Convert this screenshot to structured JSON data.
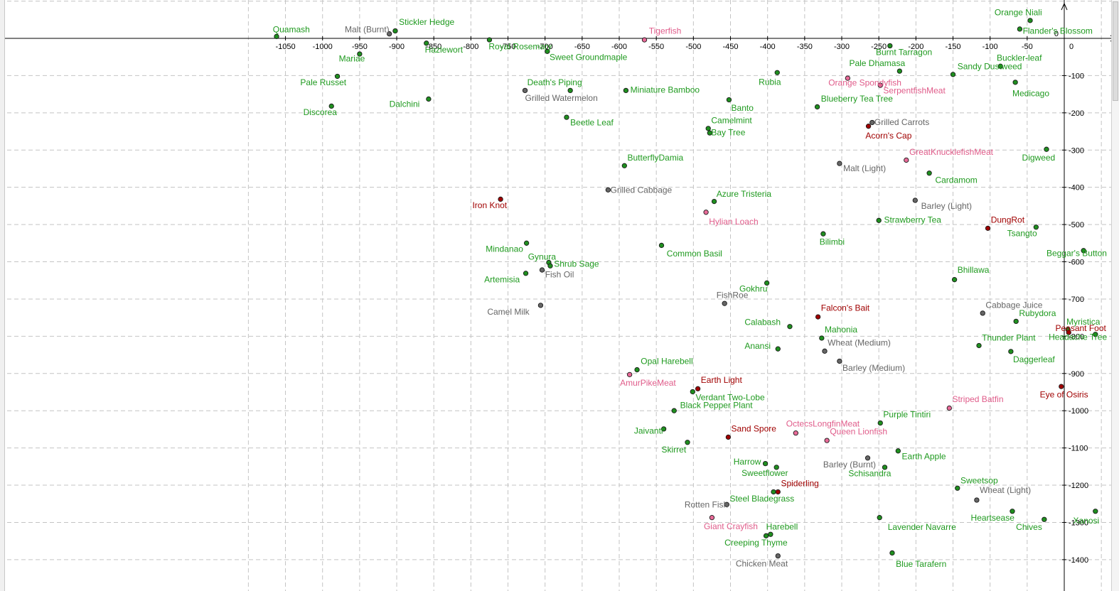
{
  "chart_data": {
    "type": "scatter",
    "title": "",
    "xlabel": "",
    "ylabel": "",
    "xlim": [
      -1085,
      75
    ],
    "ylim": [
      -1460,
      75
    ],
    "grid": true,
    "x_ticks": [
      -1050,
      -1000,
      -950,
      -900,
      -850,
      -800,
      -750,
      -700,
      -650,
      -600,
      -550,
      -500,
      -450,
      -400,
      -350,
      -300,
      -250,
      -200,
      -150,
      -100,
      -50,
      0
    ],
    "y_ticks": [
      -100,
      -200,
      -300,
      -400,
      -500,
      -600,
      -700,
      -800,
      -900,
      -1000,
      -1100,
      -1200,
      -1300,
      -1400
    ],
    "zero_label": "0",
    "colors": {
      "green": "#1f9a1f",
      "gray": "#666666",
      "red": "#a00000",
      "pink": "#e05c8a",
      "grid": "#c4c4c4",
      "axis": "#000000"
    },
    "points": [
      {
        "label": "Quamash",
        "x": -1062,
        "y": 5,
        "color": "green",
        "lx": -1067,
        "ly": 16
      },
      {
        "label": "Malt (Burnt)",
        "x": -910,
        "y": 12,
        "color": "gray",
        "lx": -970,
        "ly": 16
      },
      {
        "label": "Stickler Hedge",
        "x": -902,
        "y": 20,
        "color": "green",
        "lx": -897,
        "ly": 36
      },
      {
        "label": "Hazlewort",
        "x": -860,
        "y": -13,
        "color": "green",
        "lx": -862,
        "ly": -38
      },
      {
        "label": "Royal Rosemary",
        "x": -775,
        "y": -4,
        "color": "green",
        "lx": -776,
        "ly": -30
      },
      {
        "label": "Tigerfish",
        "x": -566,
        "y": -4,
        "color": "pink",
        "lx": -560,
        "ly": 12
      },
      {
        "label": "Sweet Groundmaple",
        "x": -697,
        "y": -35,
        "color": "green",
        "lx": -694,
        "ly": -58
      },
      {
        "label": "Mariae",
        "x": -950,
        "y": -42,
        "color": "green",
        "lx": -978,
        "ly": -62
      },
      {
        "label": "Pale Russet",
        "x": -980,
        "y": -102,
        "color": "green",
        "lx": -1030,
        "ly": -126
      },
      {
        "label": "Discorea",
        "x": -988,
        "y": -182,
        "color": "green",
        "lx": -1026,
        "ly": -206
      },
      {
        "label": "Dalchini",
        "x": -857,
        "y": -163,
        "color": "green",
        "lx": -910,
        "ly": -184
      },
      {
        "label": "Death's Piping",
        "x": -666,
        "y": -140,
        "color": "green",
        "lx": -724,
        "ly": -126
      },
      {
        "label": "Grilled Watermelon",
        "x": -727,
        "y": -140,
        "color": "gray",
        "lx": -727,
        "ly": -168
      },
      {
        "label": "Beetle Leaf",
        "x": -671,
        "y": -212,
        "color": "green",
        "lx": -666,
        "ly": -234
      },
      {
        "label": "Miniature Bamboo",
        "x": -591,
        "y": -140,
        "color": "green",
        "lx": -585,
        "ly": -146
      },
      {
        "label": "Banto",
        "x": -452,
        "y": -165,
        "color": "green",
        "lx": -449,
        "ly": -195
      },
      {
        "label": "Rubia",
        "x": -387,
        "y": -92,
        "color": "green",
        "lx": -412,
        "ly": -125
      },
      {
        "label": "Camelmint",
        "x": -480,
        "y": -242,
        "color": "green",
        "lx": -476,
        "ly": -228
      },
      {
        "label": "Bay Tree",
        "x": -478,
        "y": -254,
        "color": "green",
        "lx": -476,
        "ly": -260
      },
      {
        "label": "ButterflyDamia",
        "x": -593,
        "y": -342,
        "color": "green",
        "lx": -589,
        "ly": -328
      },
      {
        "label": "Grilled Cabbage",
        "x": -615,
        "y": -407,
        "color": "gray",
        "lx": -612,
        "ly": -415
      },
      {
        "label": "Iron Knot",
        "x": -760,
        "y": -432,
        "color": "red",
        "lx": -798,
        "ly": -456
      },
      {
        "label": "Azure Tristeria",
        "x": -472,
        "y": -438,
        "color": "green",
        "lx": -469,
        "ly": -425
      },
      {
        "label": "Hylian Loach",
        "x": -483,
        "y": -467,
        "color": "pink",
        "lx": -479,
        "ly": -500
      },
      {
        "label": "Mindanao",
        "x": -725,
        "y": -550,
        "color": "green",
        "lx": -780,
        "ly": -573
      },
      {
        "label": "Common Basil",
        "x": -543,
        "y": -556,
        "color": "green",
        "lx": -536,
        "ly": -586
      },
      {
        "label": "Gynura",
        "x": -695,
        "y": -602,
        "color": "green",
        "lx": -723,
        "ly": -594
      },
      {
        "label": "Shrub Sage",
        "x": -693,
        "y": -611,
        "color": "green",
        "lx": -688,
        "ly": -613
      },
      {
        "label": "Fish Oil",
        "x": -704,
        "y": -622,
        "color": "gray",
        "lx": -700,
        "ly": -642
      },
      {
        "label": "Artemisia",
        "x": -726,
        "y": -631,
        "color": "green",
        "lx": -782,
        "ly": -655
      },
      {
        "label": "Camel Milk",
        "x": -706,
        "y": -717,
        "color": "gray",
        "lx": -778,
        "ly": -742
      },
      {
        "label": "FishRoe",
        "x": -458,
        "y": -712,
        "color": "gray",
        "lx": -469,
        "ly": -697
      },
      {
        "label": "Gokhru",
        "x": -401,
        "y": -657,
        "color": "green",
        "lx": -438,
        "ly": -680
      },
      {
        "label": "Calabash",
        "x": -370,
        "y": -774,
        "color": "green",
        "lx": -431,
        "ly": -770
      },
      {
        "label": "Anansi",
        "x": -386,
        "y": -834,
        "color": "green",
        "lx": -431,
        "ly": -834
      },
      {
        "label": "Falcon's Bait",
        "x": -332,
        "y": -748,
        "color": "red",
        "lx": -328,
        "ly": -732
      },
      {
        "label": "Mahonia",
        "x": -327,
        "y": -805,
        "color": "green",
        "lx": -323,
        "ly": -790
      },
      {
        "label": "Wheat (Medium)",
        "x": -323,
        "y": -840,
        "color": "gray",
        "lx": -319,
        "ly": -825
      },
      {
        "label": "Barley (Medium)",
        "x": -303,
        "y": -867,
        "color": "gray",
        "lx": -299,
        "ly": -893
      },
      {
        "label": "Opal Harebell",
        "x": -576,
        "y": -890,
        "color": "green",
        "lx": -571,
        "ly": -875
      },
      {
        "label": "AmurPikeMeat",
        "x": -586,
        "y": -903,
        "color": "pink",
        "lx": -599,
        "ly": -933
      },
      {
        "label": "Earth Light",
        "x": -494,
        "y": -941,
        "color": "red",
        "lx": -490,
        "ly": -925
      },
      {
        "label": "Verdant Two-Lobe",
        "x": -501,
        "y": -949,
        "color": "green",
        "lx": -497,
        "ly": -972
      },
      {
        "label": "Black Pepper Plant",
        "x": -526,
        "y": -1000,
        "color": "green",
        "lx": -518,
        "ly": -993
      },
      {
        "label": "Jaivanti",
        "x": -540,
        "y": -1049,
        "color": "green",
        "lx": -580,
        "ly": -1062
      },
      {
        "label": "Skirret",
        "x": -508,
        "y": -1085,
        "color": "green",
        "lx": -543,
        "ly": -1112
      },
      {
        "label": "Sand Spore",
        "x": -453,
        "y": -1071,
        "color": "red",
        "lx": -449,
        "ly": -1056
      },
      {
        "label": "OctecsLongfinMeat",
        "x": -362,
        "y": -1060,
        "color": "pink",
        "lx": -375,
        "ly": -1043
      },
      {
        "label": "Queen Lionfish",
        "x": -320,
        "y": -1080,
        "color": "pink",
        "lx": -316,
        "ly": -1064
      },
      {
        "label": "Purple Tintiri",
        "x": -248,
        "y": -1033,
        "color": "green",
        "lx": -244,
        "ly": -1018
      },
      {
        "label": "Striped Batfin",
        "x": -155,
        "y": -993,
        "color": "pink",
        "lx": -151,
        "ly": -977
      },
      {
        "label": "Eye of Osiris",
        "x": -4,
        "y": -935,
        "color": "red",
        "lx": -33,
        "ly": -964
      },
      {
        "label": "Earth Apple",
        "x": -224,
        "y": -1108,
        "color": "green",
        "lx": -219,
        "ly": -1130
      },
      {
        "label": "Barley (Burnt)",
        "x": -265,
        "y": -1127,
        "color": "gray",
        "lx": -325,
        "ly": -1152
      },
      {
        "label": "Schisandra",
        "x": -242,
        "y": -1152,
        "color": "green",
        "lx": -291,
        "ly": -1176
      },
      {
        "label": "Harrow",
        "x": -403,
        "y": -1142,
        "color": "green",
        "lx": -446,
        "ly": -1145
      },
      {
        "label": "Sweetflower",
        "x": -388,
        "y": -1152,
        "color": "green",
        "lx": -435,
        "ly": -1175
      },
      {
        "label": "Spiderling",
        "x": -386,
        "y": -1218,
        "color": "red",
        "lx": -382,
        "ly": -1203
      },
      {
        "label": "Steel Bladegrass",
        "x": -392,
        "y": -1218,
        "color": "green",
        "lx": -451,
        "ly": -1244
      },
      {
        "label": "Rotten Fish",
        "x": -455,
        "y": -1252,
        "color": "gray",
        "lx": -512,
        "ly": -1260
      },
      {
        "label": "Giant Crayfish",
        "x": -475,
        "y": -1287,
        "color": "pink",
        "lx": -486,
        "ly": -1318
      },
      {
        "label": "Harebell",
        "x": -396,
        "y": -1332,
        "color": "green",
        "lx": -402,
        "ly": -1319
      },
      {
        "label": "Creeping Thyme",
        "x": -402,
        "y": -1336,
        "color": "green",
        "lx": -458,
        "ly": -1362
      },
      {
        "label": "Chicken Meat",
        "x": -386,
        "y": -1390,
        "color": "gray",
        "lx": -443,
        "ly": -1418
      },
      {
        "label": "Lavender Navarre",
        "x": -249,
        "y": -1287,
        "color": "green",
        "lx": -238,
        "ly": -1320
      },
      {
        "label": "Blue Tarafern",
        "x": -232,
        "y": -1382,
        "color": "green",
        "lx": -227,
        "ly": -1419
      },
      {
        "label": "Sweetsop",
        "x": -144,
        "y": -1208,
        "color": "green",
        "lx": -140,
        "ly": -1195
      },
      {
        "label": "Wheat (Light)",
        "x": -118,
        "y": -1240,
        "color": "gray",
        "lx": -114,
        "ly": -1221
      },
      {
        "label": "Heartsease",
        "x": -70,
        "y": -1270,
        "color": "green",
        "lx": -126,
        "ly": -1295
      },
      {
        "label": "Chives",
        "x": -27,
        "y": -1292,
        "color": "green",
        "lx": -65,
        "ly": -1320
      },
      {
        "label": "Xanosi",
        "x": 42,
        "y": -1270,
        "color": "green",
        "lx": 12,
        "ly": -1303
      },
      {
        "label": "Thunder Plant",
        "x": -115,
        "y": -825,
        "color": "green",
        "lx": -111,
        "ly": -812
      },
      {
        "label": "Daggerleaf",
        "x": -72,
        "y": -841,
        "color": "green",
        "lx": -69,
        "ly": -870
      },
      {
        "label": "Cabbage Juice",
        "x": -110,
        "y": -738,
        "color": "gray",
        "lx": -106,
        "ly": -724
      },
      {
        "label": "Rubydora",
        "x": -65,
        "y": -760,
        "color": "green",
        "lx": -61,
        "ly": -746
      },
      {
        "label": "Myristica",
        "x": 5,
        "y": -782,
        "color": "green",
        "lx": 3,
        "ly": -769
      },
      {
        "label": "Peasant Foot",
        "x": 6,
        "y": -790,
        "color": "red",
        "lx": -12,
        "ly": -786
      },
      {
        "label": "Headache Tree",
        "x": 42,
        "y": -795,
        "color": "green",
        "lx": -21,
        "ly": -810
      },
      {
        "label": "Bhillawa",
        "x": -148,
        "y": -648,
        "color": "green",
        "lx": -144,
        "ly": -630
      },
      {
        "label": "Beggar's Button",
        "x": 26,
        "y": -570,
        "color": "green",
        "lx": -24,
        "ly": -585
      },
      {
        "label": "Tsangto",
        "x": -38,
        "y": -507,
        "color": "green",
        "lx": -77,
        "ly": -531
      },
      {
        "label": "DungRot",
        "x": -103,
        "y": -510,
        "color": "red",
        "lx": -99,
        "ly": -495
      },
      {
        "label": "Barley (Light)",
        "x": -201,
        "y": -435,
        "color": "gray",
        "lx": -193,
        "ly": -458
      },
      {
        "label": "Strawberry Tea",
        "x": -250,
        "y": -489,
        "color": "green",
        "lx": -243,
        "ly": -495
      },
      {
        "label": "Bilimbi",
        "x": -325,
        "y": -525,
        "color": "green",
        "lx": -330,
        "ly": -554
      },
      {
        "label": "Cardamom",
        "x": -182,
        "y": -362,
        "color": "green",
        "lx": -174,
        "ly": -388
      },
      {
        "label": "Malt (Light)",
        "x": -303,
        "y": -336,
        "color": "gray",
        "lx": -298,
        "ly": -357
      },
      {
        "label": "GreatKnucklefishMeat",
        "x": -213,
        "y": -327,
        "color": "pink",
        "lx": -209,
        "ly": -313
      },
      {
        "label": "Digweed",
        "x": -24,
        "y": -298,
        "color": "green",
        "lx": -57,
        "ly": -328
      },
      {
        "label": "Grilled Carrots",
        "x": -259,
        "y": -226,
        "color": "gray",
        "lx": -256,
        "ly": -233
      },
      {
        "label": "Acorn's Cap",
        "x": -264,
        "y": -236,
        "color": "red",
        "lx": -268,
        "ly": -269
      },
      {
        "label": "Blueberry Tea Tree",
        "x": -333,
        "y": -184,
        "color": "green",
        "lx": -328,
        "ly": -170
      },
      {
        "label": "Orange Spondyfish",
        "x": -292,
        "y": -107,
        "color": "pink",
        "lx": -318,
        "ly": -127
      },
      {
        "label": "SerpentfishMeat",
        "x": -248,
        "y": -126,
        "color": "pink",
        "lx": -244,
        "ly": -148
      },
      {
        "label": "Pale Dhamasa",
        "x": -222,
        "y": -88,
        "color": "green",
        "lx": -290,
        "ly": -74
      },
      {
        "label": "Burnt Tarragon",
        "x": -235,
        "y": -20,
        "color": "green",
        "lx": -254,
        "ly": -45
      },
      {
        "label": "Sandy Dustweed",
        "x": -150,
        "y": -97,
        "color": "green",
        "lx": -144,
        "ly": -83
      },
      {
        "label": "Buckler-leaf",
        "x": -86,
        "y": -75,
        "color": "green",
        "lx": -91,
        "ly": -60
      },
      {
        "label": "Medicago",
        "x": -66,
        "y": -118,
        "color": "green",
        "lx": -70,
        "ly": -155
      },
      {
        "label": "Orange Niali",
        "x": -46,
        "y": 48,
        "color": "green",
        "lx": -94,
        "ly": 62
      },
      {
        "label": "Flander's Blossom",
        "x": -60,
        "y": 25,
        "color": "green",
        "lx": -56,
        "ly": 12
      }
    ]
  }
}
